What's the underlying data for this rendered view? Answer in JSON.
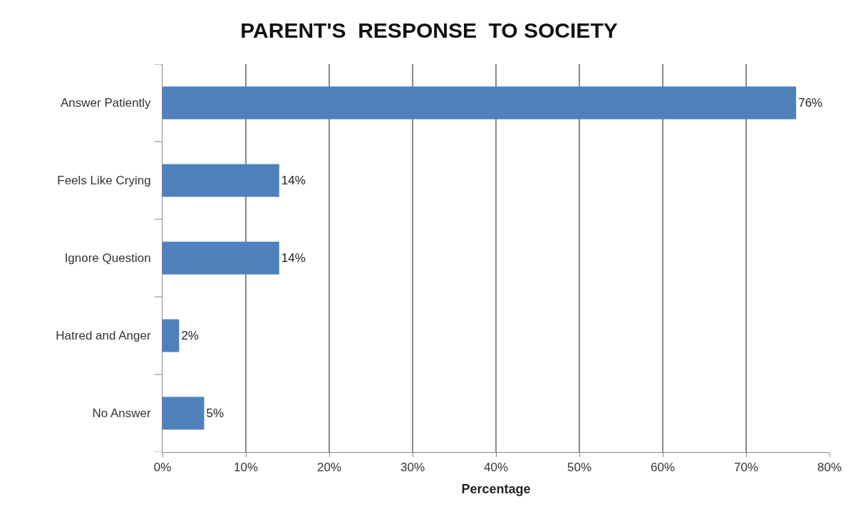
{
  "chart_data": {
    "type": "bar",
    "orientation": "horizontal",
    "title": "PARENT'S  RESPONSE  TO SOCIETY",
    "xlabel": "Percentage",
    "categories": [
      "Answer Patiently",
      "Feels Like Crying",
      "Ignore Question",
      "Hatred and Anger",
      "No Answer"
    ],
    "values": [
      76,
      14,
      14,
      2,
      5
    ],
    "value_labels": [
      "76%",
      "14%",
      "14%",
      "2%",
      "5%"
    ],
    "color": "#4f81bd",
    "xlim": [
      0,
      80
    ],
    "xticks": [
      {
        "value": 0,
        "label": "0%"
      },
      {
        "value": 10,
        "label": "10%"
      },
      {
        "value": 20,
        "label": "20%"
      },
      {
        "value": 30,
        "label": "30%"
      },
      {
        "value": 40,
        "label": "40%"
      },
      {
        "value": 50,
        "label": "50%"
      },
      {
        "value": 60,
        "label": "60%"
      },
      {
        "value": 70,
        "label": "70%"
      },
      {
        "value": 80,
        "label": "80%"
      }
    ],
    "grid": "x"
  }
}
